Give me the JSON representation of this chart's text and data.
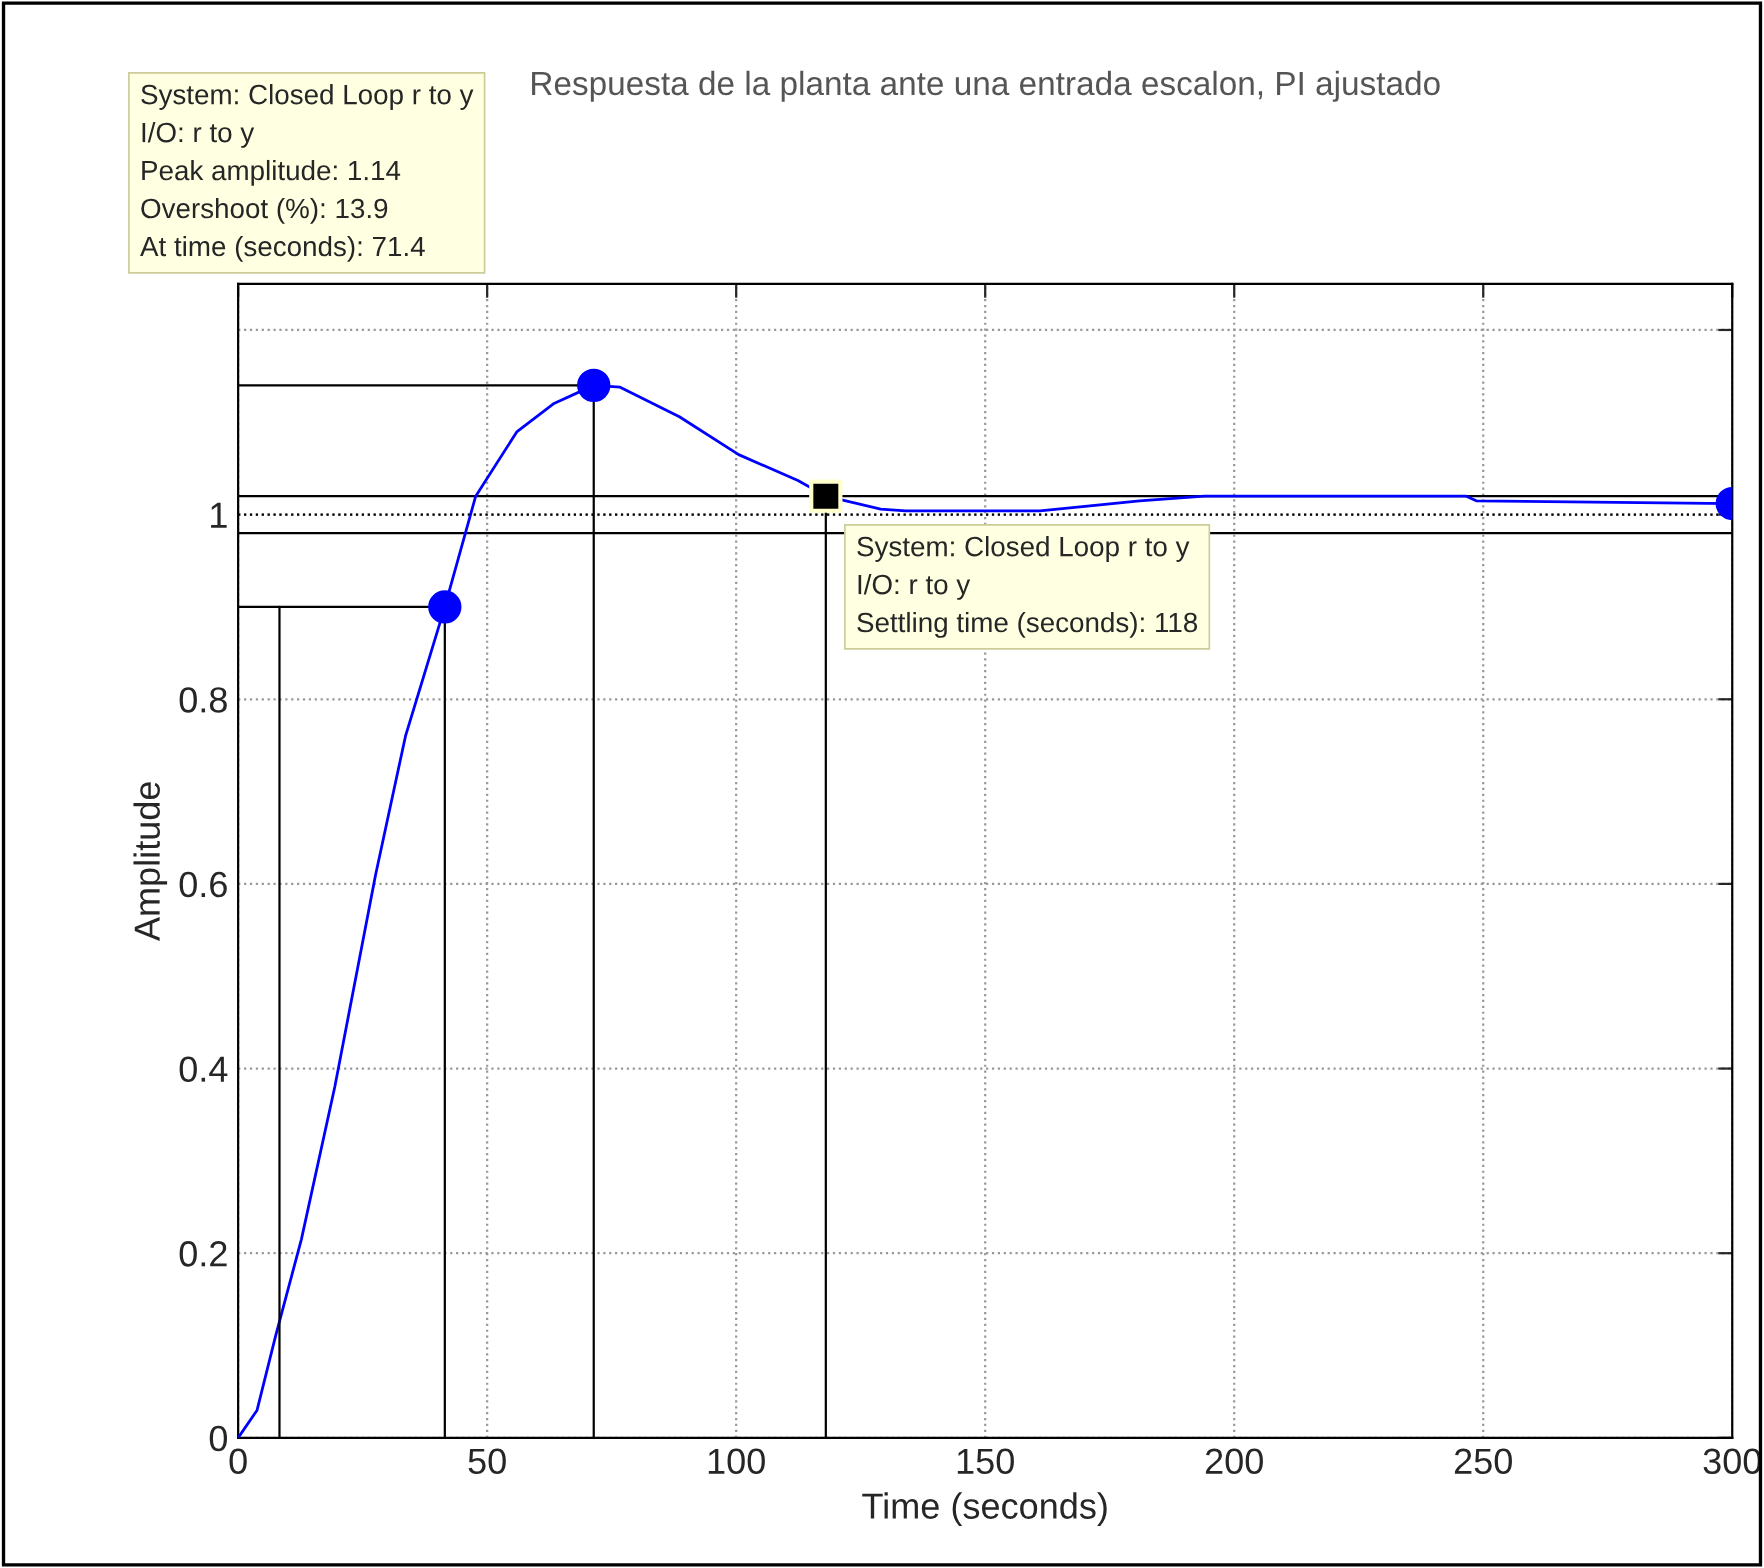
{
  "chart_data": {
    "type": "line",
    "title": "Respuesta de la planta ante una entrada escalon, PI ajustado",
    "xlabel": "Time (seconds)",
    "ylabel": "Amplitude",
    "xlim": [
      0,
      300
    ],
    "xticks": [
      0,
      50,
      100,
      150,
      200,
      250,
      300
    ],
    "ylim": [
      0,
      1.25
    ],
    "yticks": [
      0,
      0.2,
      0.4,
      0.6,
      0.8,
      1,
      {
        "value": 1.2,
        "label": null
      }
    ],
    "grid": true,
    "legend": false,
    "series": [
      {
        "color": "#0000ff",
        "x": [
          0,
          3.8,
          7.5,
          12.7,
          19.4,
          27.6,
          33.6,
          41.5,
          47.7,
          56,
          63.3,
          71.4,
          76.7,
          88.6,
          100.5,
          112.4,
          118,
          129,
          134,
          161,
          181,
          194,
          246.6,
          248.6,
          300
        ],
        "values": [
          0,
          0.03,
          0.11,
          0.215,
          0.38,
          0.61,
          0.76,
          0.9,
          1.02,
          1.09,
          1.12,
          1.14,
          1.138,
          1.106,
          1.065,
          1.037,
          1.02,
          1.006,
          1.004,
          1.004,
          1.015,
          1.02,
          1.02,
          1.015,
          1.012
        ]
      },
      {
        "type": "line",
        "color": "#000000",
        "x": [
          8.3,
          8.3
        ],
        "values": [
          0,
          0.9
        ]
      },
      {
        "type": "line",
        "color": "#000000",
        "x": [
          0,
          41.5,
          41.5
        ],
        "values": [
          0.9,
          0.9,
          0
        ]
      },
      {
        "type": "line",
        "color": "#000000",
        "x": [
          0,
          71.4,
          71.4
        ],
        "values": [
          1.14,
          1.14,
          0
        ]
      },
      {
        "type": "line",
        "color": "#000000",
        "x": [
          118,
          118
        ],
        "values": [
          0,
          1.02
        ]
      },
      {
        "type": "scatter",
        "color": "#0000ff",
        "marker": "circle",
        "x": [
          41.5,
          71.4,
          300
        ],
        "values": [
          0.9,
          1.14,
          1.012
        ]
      },
      {
        "type": "scatter",
        "color": "#000000",
        "marker": "square",
        "x": [
          118
        ],
        "values": [
          1.02
        ]
      }
    ],
    "ref_lines": [
      {
        "axis": "y",
        "value": 1.02,
        "color": "#000000"
      },
      {
        "axis": "y",
        "value": 1.0,
        "color": "#000000",
        "line_style": "dotted"
      },
      {
        "axis": "y",
        "value": 0.98,
        "color": "#000000"
      }
    ],
    "annotations": [
      "System: Closed Loop r to y\nI/O: r to y\nPeak amplitude: 1.14\nOvershoot (%): 13.9\nAt time (seconds): 71.4",
      "System: Closed Loop r to y\nI/O: r to y\nSettling time (seconds): 118"
    ]
  }
}
